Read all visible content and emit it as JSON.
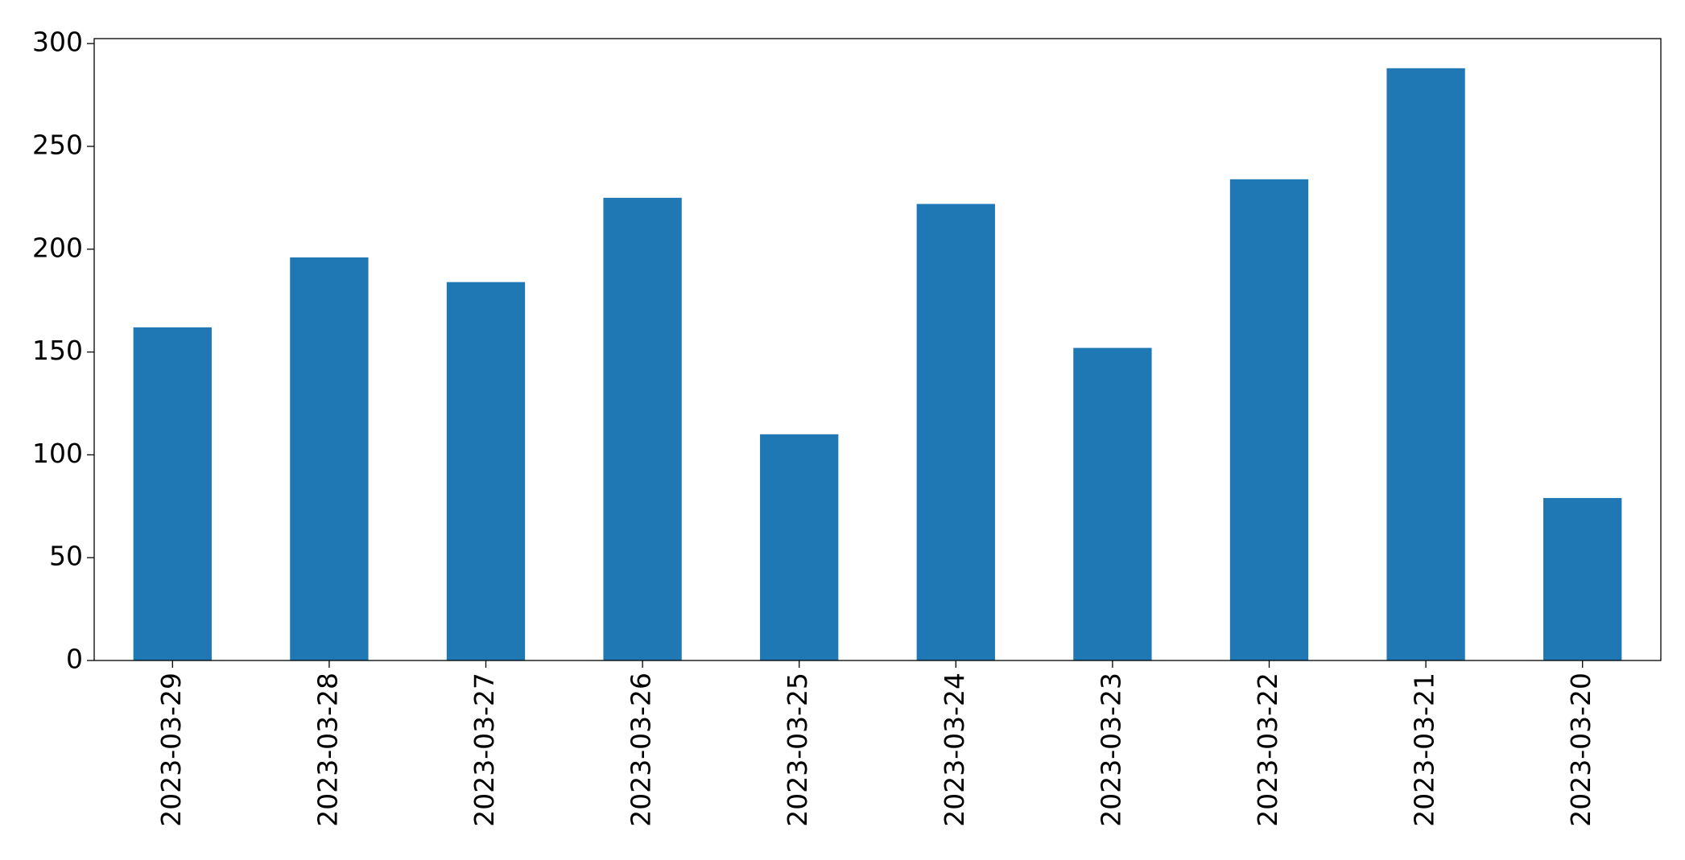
{
  "chart_data": {
    "type": "bar",
    "categories": [
      "2023-03-29",
      "2023-03-28",
      "2023-03-27",
      "2023-03-26",
      "2023-03-25",
      "2023-03-24",
      "2023-03-23",
      "2023-03-22",
      "2023-03-21",
      "2023-03-20"
    ],
    "values": [
      162,
      196,
      184,
      225,
      110,
      222,
      152,
      234,
      288,
      79
    ],
    "color": "#1f77b4",
    "ylim": [
      0,
      302.4
    ],
    "yticks": [
      0,
      50,
      100,
      150,
      200,
      250,
      300
    ],
    "grid": false
  }
}
